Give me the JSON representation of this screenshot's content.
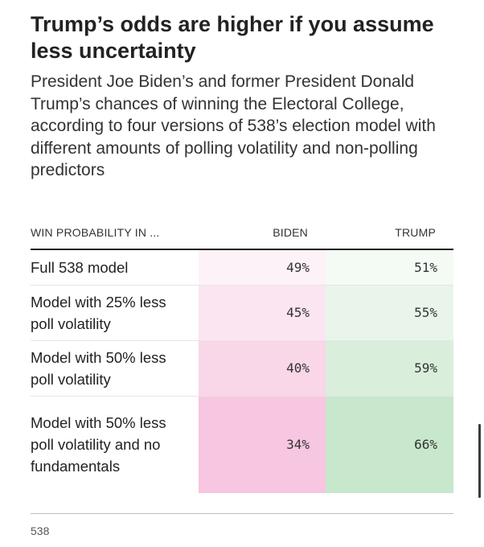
{
  "title": "Trump’s odds are higher if you assume less uncertainty",
  "subtitle": "President Joe Biden’s and former President Donald Trump’s chances of winning the Electoral College, according to four versions of 538’s election model with different amounts of polling volatility and non-polling predictors",
  "source": "538",
  "colors": {
    "biden_scale": [
      "#fdf2f8",
      "#fbe5f1",
      "#f9d6e8",
      "#f7c6e0"
    ],
    "trump_scale": [
      "#f4faf4",
      "#e9f5ea",
      "#d9efdc",
      "#c7e8cc"
    ]
  },
  "chart_data": {
    "type": "table",
    "columns": [
      "WIN PROBABILITY IN ...",
      "BIDEN",
      "TRUMP"
    ],
    "rows": [
      {
        "label": "Full 538 model",
        "biden": "49%",
        "trump": "51%"
      },
      {
        "label": "Model with 25% less poll volatility",
        "biden": "45%",
        "trump": "55%"
      },
      {
        "label": "Model with 50% less poll volatility",
        "biden": "40%",
        "trump": "59%"
      },
      {
        "label": "Model with 50% less poll volatility and no fundamentals",
        "biden": "34%",
        "trump": "66%"
      }
    ]
  }
}
